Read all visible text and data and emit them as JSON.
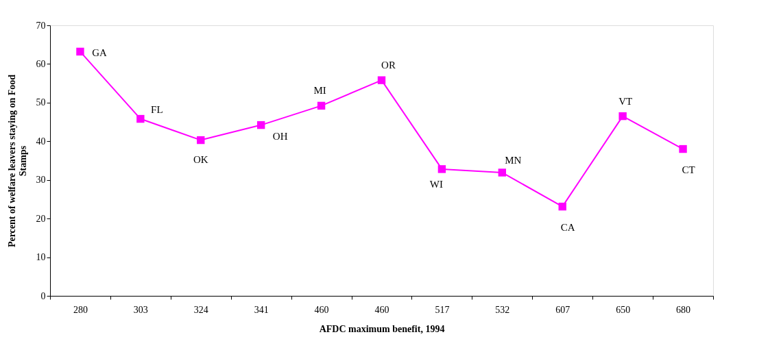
{
  "chart_data": {
    "type": "line",
    "xlabel": "AFDC maximum benefit, 1994",
    "ylabel": "Percent of welfare leavers staying on Food Stamps",
    "categories": [
      "280",
      "303",
      "324",
      "341",
      "460",
      "460",
      "517",
      "532",
      "607",
      "650",
      "680"
    ],
    "series": [
      {
        "color": "#ff00ff",
        "values": [
          63.2,
          45.8,
          40.3,
          44.2,
          49.2,
          55.8,
          32.8,
          31.9,
          23.1,
          46.5,
          38.0
        ]
      }
    ],
    "ylim": [
      0,
      70
    ],
    "yticks": [
      0,
      10,
      20,
      30,
      40,
      50,
      60,
      70
    ],
    "grid": false,
    "marker": "square",
    "line_style": "solid",
    "annotations": [
      "GA",
      "FL",
      "OK",
      "OH",
      "MI",
      "OR",
      "WI",
      "MN",
      "CA",
      "VT",
      "CT"
    ]
  }
}
